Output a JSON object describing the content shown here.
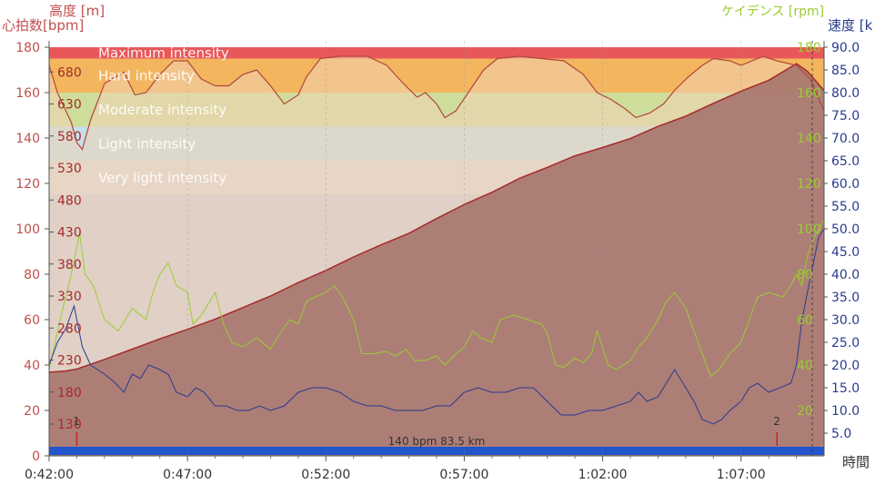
{
  "chart_data": {
    "type": "area",
    "axis_titles": {
      "elevation": "高度 [m]",
      "heart_rate": "心拍数[bpm]",
      "cadence": "ケイデンス [rpm]",
      "speed": "速度 [k",
      "time": "時間"
    },
    "x_ticks": [
      "0:42:00",
      "0:47:00",
      "0:52:00",
      "0:57:00",
      "1:02:00",
      "1:07:00"
    ],
    "x_range_min": [
      0,
      28
    ],
    "hr_ticks": [
      0,
      20,
      40,
      60,
      80,
      100,
      120,
      140,
      160,
      180
    ],
    "hr_range": [
      0,
      180
    ],
    "elev_ticks": [
      130,
      180,
      230,
      280,
      330,
      380,
      430,
      480,
      530,
      580,
      630,
      680
    ],
    "cad_ticks": [
      20,
      40,
      60,
      80,
      100,
      120,
      140,
      160,
      180
    ],
    "speed_ticks": [
      "5.0",
      "10.0",
      "15.0",
      "20.0",
      "25.0",
      "30.0",
      "35.0",
      "40.0",
      "45.0",
      "50.0",
      "55.0",
      "60.0",
      "65.0",
      "70.0",
      "75.0",
      "80.0",
      "85.0",
      "90.0"
    ],
    "zones": [
      {
        "name": "Maximum intensity",
        "from": 175,
        "to": 180,
        "color": "#e8585a"
      },
      {
        "name": "Hard intensity",
        "from": 160,
        "to": 175,
        "color": "#f3b65e"
      },
      {
        "name": "Moderate intensity",
        "from": 145,
        "to": 160,
        "color": "#cfdd9b"
      },
      {
        "name": "Light intensity",
        "from": 130,
        "to": 145,
        "color": "#c6dfe8"
      },
      {
        "name": "Very light intensity",
        "from": 115,
        "to": 130,
        "color": "#dbdbdb"
      },
      {
        "name": "",
        "from": 0,
        "to": 115,
        "color": "#cdcfdb"
      }
    ],
    "series": [
      {
        "name": "Elevation",
        "unit": "m",
        "color": "#a8766f",
        "line_color": "#a52a2a",
        "points": [
          [
            0,
            211
          ],
          [
            0.3,
            212
          ],
          [
            0.6,
            213
          ],
          [
            1.0,
            216
          ],
          [
            2,
            231
          ],
          [
            3,
            247
          ],
          [
            4,
            263
          ],
          [
            5,
            278
          ],
          [
            6,
            294
          ],
          [
            7,
            312
          ],
          [
            8,
            330
          ],
          [
            9,
            351
          ],
          [
            10,
            370
          ],
          [
            11,
            391
          ],
          [
            12,
            410
          ],
          [
            13,
            428
          ],
          [
            14,
            451
          ],
          [
            15,
            473
          ],
          [
            16,
            492
          ],
          [
            17,
            514
          ],
          [
            18,
            531
          ],
          [
            19,
            549
          ],
          [
            20,
            562
          ],
          [
            21,
            576
          ],
          [
            22,
            595
          ],
          [
            23,
            611
          ],
          [
            24,
            631
          ],
          [
            25,
            650
          ],
          [
            26,
            667
          ],
          [
            27,
            693
          ],
          [
            27.4,
            681
          ],
          [
            28,
            651
          ]
        ]
      },
      {
        "name": "Heart rate",
        "unit": "bpm",
        "color": "#f0d2b4",
        "line_color": "#b2453a",
        "points": [
          [
            0,
            172
          ],
          [
            0.3,
            160
          ],
          [
            0.8,
            147
          ],
          [
            1.0,
            138
          ],
          [
            1.2,
            135
          ],
          [
            1.5,
            148
          ],
          [
            2,
            164
          ],
          [
            2.7,
            169
          ],
          [
            3.1,
            159
          ],
          [
            3.5,
            160
          ],
          [
            4,
            168
          ],
          [
            4.5,
            174
          ],
          [
            5,
            174
          ],
          [
            5.5,
            166
          ],
          [
            6,
            163
          ],
          [
            6.5,
            163
          ],
          [
            7,
            168
          ],
          [
            7.5,
            170
          ],
          [
            8,
            163
          ],
          [
            8.5,
            155
          ],
          [
            9,
            159
          ],
          [
            9.3,
            167
          ],
          [
            9.8,
            175
          ],
          [
            10.5,
            176
          ],
          [
            11.5,
            176
          ],
          [
            12.2,
            172
          ],
          [
            12.8,
            164
          ],
          [
            13.3,
            158
          ],
          [
            13.6,
            160
          ],
          [
            14,
            155
          ],
          [
            14.3,
            149
          ],
          [
            14.7,
            152
          ],
          [
            15.2,
            161
          ],
          [
            15.7,
            170
          ],
          [
            16.2,
            175
          ],
          [
            17,
            176
          ],
          [
            17.8,
            175
          ],
          [
            18.6,
            174
          ],
          [
            19.3,
            168
          ],
          [
            19.8,
            160
          ],
          [
            20.3,
            157
          ],
          [
            20.8,
            153
          ],
          [
            21.2,
            149
          ],
          [
            21.7,
            151
          ],
          [
            22.2,
            155
          ],
          [
            22.6,
            161
          ],
          [
            23.1,
            167
          ],
          [
            23.6,
            172
          ],
          [
            24,
            175
          ],
          [
            24.6,
            174
          ],
          [
            25,
            172
          ],
          [
            25.8,
            176
          ],
          [
            26.3,
            174
          ],
          [
            27,
            172
          ],
          [
            27.5,
            166
          ],
          [
            28,
            152
          ]
        ]
      },
      {
        "name": "Cadence",
        "unit": "rpm",
        "color": "#9acd32",
        "points": [
          [
            0,
            38
          ],
          [
            0.4,
            60
          ],
          [
            0.8,
            80
          ],
          [
            1.1,
            98
          ],
          [
            1.3,
            80
          ],
          [
            1.6,
            75
          ],
          [
            2,
            60
          ],
          [
            2.5,
            55
          ],
          [
            3,
            65
          ],
          [
            3.5,
            60
          ],
          [
            3.7,
            70
          ],
          [
            4,
            80
          ],
          [
            4.3,
            85
          ],
          [
            4.6,
            75
          ],
          [
            5,
            72
          ],
          [
            5.2,
            58
          ],
          [
            5.5,
            62
          ],
          [
            6,
            72
          ],
          [
            6.3,
            58
          ],
          [
            6.6,
            50
          ],
          [
            7,
            48
          ],
          [
            7.5,
            52
          ],
          [
            8,
            47
          ],
          [
            8.4,
            55
          ],
          [
            8.7,
            60
          ],
          [
            9,
            58
          ],
          [
            9.3,
            68
          ],
          [
            9.6,
            70
          ],
          [
            10,
            72
          ],
          [
            10.3,
            75
          ],
          [
            10.6,
            70
          ],
          [
            11,
            60
          ],
          [
            11.3,
            45
          ],
          [
            11.7,
            45
          ],
          [
            12.2,
            46
          ],
          [
            12.5,
            44
          ],
          [
            12.9,
            47
          ],
          [
            13.2,
            42
          ],
          [
            13.6,
            42
          ],
          [
            14,
            44
          ],
          [
            14.3,
            40
          ],
          [
            14.7,
            45
          ],
          [
            15,
            48
          ],
          [
            15.3,
            55
          ],
          [
            15.6,
            52
          ],
          [
            16,
            50
          ],
          [
            16.3,
            60
          ],
          [
            16.8,
            62
          ],
          [
            17.3,
            60
          ],
          [
            17.8,
            58
          ],
          [
            18,
            54
          ],
          [
            18.3,
            40
          ],
          [
            18.6,
            39
          ],
          [
            19,
            43
          ],
          [
            19.3,
            41
          ],
          [
            19.6,
            45
          ],
          [
            19.8,
            55
          ],
          [
            20.2,
            40
          ],
          [
            20.5,
            38
          ],
          [
            21,
            42
          ],
          [
            21.3,
            48
          ],
          [
            21.6,
            52
          ],
          [
            22,
            60
          ],
          [
            22.3,
            68
          ],
          [
            22.6,
            72
          ],
          [
            23,
            65
          ],
          [
            23.3,
            55
          ],
          [
            23.6,
            45
          ],
          [
            23.9,
            35
          ],
          [
            24.2,
            38
          ],
          [
            24.6,
            45
          ],
          [
            25,
            50
          ],
          [
            25.3,
            60
          ],
          [
            25.6,
            70
          ],
          [
            26,
            72
          ],
          [
            26.5,
            70
          ],
          [
            26.8,
            75
          ],
          [
            27.0,
            80
          ],
          [
            27.2,
            75
          ],
          [
            27.4,
            88
          ],
          [
            27.6,
            95
          ],
          [
            27.8,
            100
          ],
          [
            28,
            104
          ]
        ]
      },
      {
        "name": "Speed",
        "unit": "km/h",
        "color": "#2a3b8f",
        "points": [
          [
            0,
            20
          ],
          [
            0.3,
            25
          ],
          [
            0.6,
            28
          ],
          [
            0.9,
            33
          ],
          [
            1.2,
            24
          ],
          [
            1.5,
            20
          ],
          [
            2,
            18
          ],
          [
            2.4,
            16
          ],
          [
            2.7,
            14
          ],
          [
            3,
            18
          ],
          [
            3.3,
            17
          ],
          [
            3.6,
            20
          ],
          [
            4,
            19
          ],
          [
            4.3,
            18
          ],
          [
            4.6,
            14
          ],
          [
            5,
            13
          ],
          [
            5.3,
            15
          ],
          [
            5.6,
            14
          ],
          [
            6,
            11
          ],
          [
            6.4,
            11
          ],
          [
            6.8,
            10
          ],
          [
            7.2,
            10
          ],
          [
            7.6,
            11
          ],
          [
            8,
            10
          ],
          [
            8.5,
            11
          ],
          [
            9,
            14
          ],
          [
            9.5,
            15
          ],
          [
            10,
            15
          ],
          [
            10.5,
            14
          ],
          [
            11,
            12
          ],
          [
            11.5,
            11
          ],
          [
            12,
            11
          ],
          [
            12.5,
            10
          ],
          [
            13,
            10
          ],
          [
            13.5,
            10
          ],
          [
            14,
            11
          ],
          [
            14.5,
            11
          ],
          [
            15,
            14
          ],
          [
            15.5,
            15
          ],
          [
            16,
            14
          ],
          [
            16.5,
            14
          ],
          [
            17,
            15
          ],
          [
            17.5,
            15
          ],
          [
            18,
            12
          ],
          [
            18.5,
            9
          ],
          [
            19,
            9
          ],
          [
            19.5,
            10
          ],
          [
            20,
            10
          ],
          [
            20.5,
            11
          ],
          [
            21,
            12
          ],
          [
            21.3,
            14
          ],
          [
            21.6,
            12
          ],
          [
            22,
            13
          ],
          [
            22.3,
            16
          ],
          [
            22.6,
            19
          ],
          [
            23,
            15
          ],
          [
            23.3,
            12
          ],
          [
            23.6,
            8
          ],
          [
            24,
            7
          ],
          [
            24.3,
            8
          ],
          [
            24.6,
            10
          ],
          [
            25,
            12
          ],
          [
            25.3,
            15
          ],
          [
            25.6,
            16
          ],
          [
            26,
            14
          ],
          [
            26.4,
            15
          ],
          [
            26.8,
            16
          ],
          [
            27.0,
            20
          ],
          [
            27.2,
            30
          ],
          [
            27.4,
            36
          ],
          [
            27.6,
            42
          ],
          [
            27.8,
            48
          ],
          [
            28,
            50
          ]
        ]
      }
    ],
    "markers": [
      {
        "label": "1",
        "x": 1.0
      },
      {
        "label": "2",
        "x": 26.3
      }
    ],
    "distance_label": "140 bpm 83.5 km",
    "distance_band_color": "#2255cc"
  }
}
